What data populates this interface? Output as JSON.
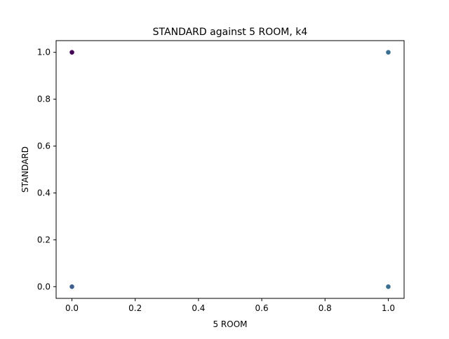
{
  "chart_data": {
    "type": "scatter",
    "title": "STANDARD against 5 ROOM, k4",
    "xlabel": "5 ROOM",
    "ylabel": "STANDARD",
    "xlim": [
      -0.05,
      1.05
    ],
    "ylim": [
      -0.05,
      1.05
    ],
    "xticks": [
      0.0,
      0.2,
      0.4,
      0.6,
      0.8,
      1.0
    ],
    "xtick_labels": [
      "0.0",
      "0.2",
      "0.4",
      "0.6",
      "0.8",
      "1.0"
    ],
    "yticks": [
      0.0,
      0.2,
      0.4,
      0.6,
      0.8,
      1.0
    ],
    "ytick_labels": [
      "0.0",
      "0.2",
      "0.4",
      "0.6",
      "0.8",
      "1.0"
    ],
    "grid": false,
    "legend": "none",
    "points": [
      {
        "x": 0,
        "y": 1,
        "color": "#440154"
      },
      {
        "x": 0,
        "y": 0,
        "color": "#3b5e8c"
      },
      {
        "x": 1,
        "y": 1,
        "color": "#3a6f8f"
      },
      {
        "x": 1,
        "y": 0,
        "color": "#3a6f8f"
      }
    ]
  }
}
